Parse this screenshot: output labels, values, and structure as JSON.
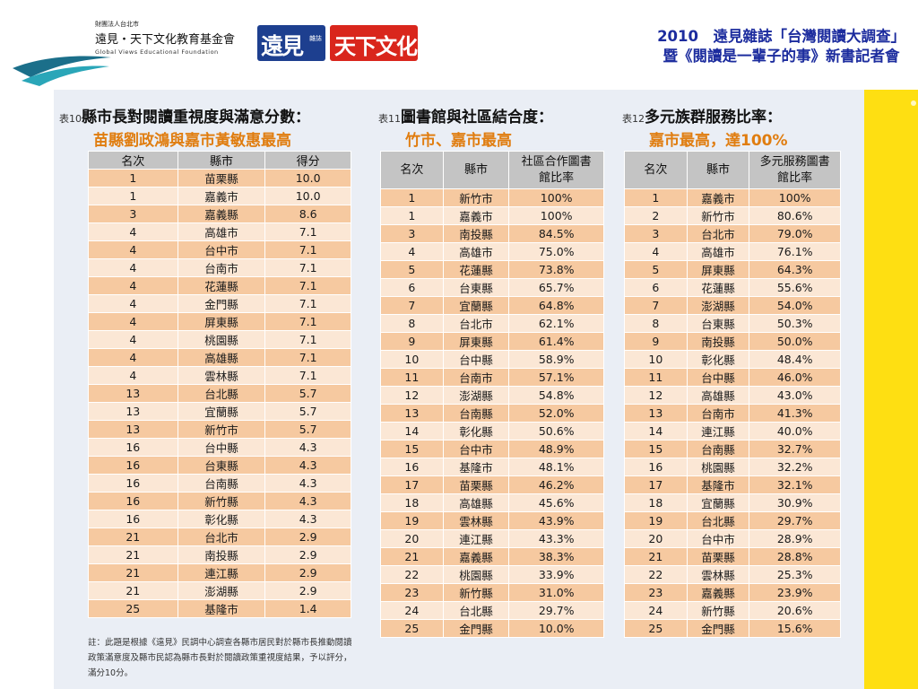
{
  "header": {
    "foundation_prefix": "財團法人台北市",
    "foundation_name": "遠見・天下文化教育基金會",
    "foundation_en": "Global Views Educational Foundation",
    "brand_gv": "遠見",
    "brand_gv_tag": "雜誌",
    "brand_cw": "天下文化",
    "title_line1": "2010　遠見雜誌「台灣閱讀大調查」",
    "title_line2": "暨《閱讀是一輩子的事》新書記者會"
  },
  "table10": {
    "num": "表10",
    "title": "縣市長對閱讀重視度與滿意分數：",
    "subtitle": "苗縣劉政鴻與嘉市黃敏惠最高",
    "headers": [
      "名次",
      "縣市",
      "得分"
    ],
    "rows": [
      [
        "1",
        "苗栗縣",
        "10.0"
      ],
      [
        "1",
        "嘉義市",
        "10.0"
      ],
      [
        "3",
        "嘉義縣",
        "8.6"
      ],
      [
        "4",
        "高雄市",
        "7.1"
      ],
      [
        "4",
        "台中市",
        "7.1"
      ],
      [
        "4",
        "台南市",
        "7.1"
      ],
      [
        "4",
        "花蓮縣",
        "7.1"
      ],
      [
        "4",
        "金門縣",
        "7.1"
      ],
      [
        "4",
        "屏東縣",
        "7.1"
      ],
      [
        "4",
        "桃園縣",
        "7.1"
      ],
      [
        "4",
        "高雄縣",
        "7.1"
      ],
      [
        "4",
        "雲林縣",
        "7.1"
      ],
      [
        "13",
        "台北縣",
        "5.7"
      ],
      [
        "13",
        "宜蘭縣",
        "5.7"
      ],
      [
        "13",
        "新竹市",
        "5.7"
      ],
      [
        "16",
        "台中縣",
        "4.3"
      ],
      [
        "16",
        "台東縣",
        "4.3"
      ],
      [
        "16",
        "台南縣",
        "4.3"
      ],
      [
        "16",
        "新竹縣",
        "4.3"
      ],
      [
        "16",
        "彰化縣",
        "4.3"
      ],
      [
        "21",
        "台北市",
        "2.9"
      ],
      [
        "21",
        "南投縣",
        "2.9"
      ],
      [
        "21",
        "連江縣",
        "2.9"
      ],
      [
        "21",
        "澎湖縣",
        "2.9"
      ],
      [
        "25",
        "基隆市",
        "1.4"
      ]
    ],
    "note": "註：此題是根據《遠見》民調中心調查各縣市居民對於縣市長推動閱讀政策滿意度及縣市民認為縣市長對於閱讀政策重視度結果，予以評分，滿分10分。"
  },
  "table11": {
    "num": "表11",
    "title": "圖書館與社區結合度：",
    "subtitle": "竹市、嘉市最高",
    "headers": [
      "名次",
      "縣市",
      "社區合作圖書館比率"
    ],
    "rows": [
      [
        "1",
        "新竹市",
        "100%"
      ],
      [
        "1",
        "嘉義市",
        "100%"
      ],
      [
        "3",
        "南投縣",
        "84.5%"
      ],
      [
        "4",
        "高雄市",
        "75.0%"
      ],
      [
        "5",
        "花蓮縣",
        "73.8%"
      ],
      [
        "6",
        "台東縣",
        "65.7%"
      ],
      [
        "7",
        "宜蘭縣",
        "64.8%"
      ],
      [
        "8",
        "台北市",
        "62.1%"
      ],
      [
        "9",
        "屏東縣",
        "61.4%"
      ],
      [
        "10",
        "台中縣",
        "58.9%"
      ],
      [
        "11",
        "台南市",
        "57.1%"
      ],
      [
        "12",
        "澎湖縣",
        "54.8%"
      ],
      [
        "13",
        "台南縣",
        "52.0%"
      ],
      [
        "14",
        "彰化縣",
        "50.6%"
      ],
      [
        "15",
        "台中市",
        "48.9%"
      ],
      [
        "16",
        "基隆市",
        "48.1%"
      ],
      [
        "17",
        "苗栗縣",
        "46.2%"
      ],
      [
        "18",
        "高雄縣",
        "45.6%"
      ],
      [
        "19",
        "雲林縣",
        "43.9%"
      ],
      [
        "20",
        "連江縣",
        "43.3%"
      ],
      [
        "21",
        "嘉義縣",
        "38.3%"
      ],
      [
        "22",
        "桃園縣",
        "33.9%"
      ],
      [
        "23",
        "新竹縣",
        "31.0%"
      ],
      [
        "24",
        "台北縣",
        "29.7%"
      ],
      [
        "25",
        "金門縣",
        "10.0%"
      ]
    ]
  },
  "table12": {
    "num": "表12",
    "title": "多元族群服務比率：",
    "subtitle": "嘉市最高，達100%",
    "headers": [
      "名次",
      "縣市",
      "多元服務圖書館比率"
    ],
    "rows": [
      [
        "1",
        "嘉義市",
        "100%"
      ],
      [
        "2",
        "新竹市",
        "80.6%"
      ],
      [
        "3",
        "台北市",
        "79.0%"
      ],
      [
        "4",
        "高雄市",
        "76.1%"
      ],
      [
        "5",
        "屏東縣",
        "64.3%"
      ],
      [
        "6",
        "花蓮縣",
        "55.6%"
      ],
      [
        "7",
        "澎湖縣",
        "54.0%"
      ],
      [
        "8",
        "台東縣",
        "50.3%"
      ],
      [
        "9",
        "南投縣",
        "50.0%"
      ],
      [
        "10",
        "彰化縣",
        "48.4%"
      ],
      [
        "11",
        "台中縣",
        "46.0%"
      ],
      [
        "12",
        "高雄縣",
        "43.0%"
      ],
      [
        "13",
        "台南市",
        "41.3%"
      ],
      [
        "14",
        "連江縣",
        "40.0%"
      ],
      [
        "15",
        "台南縣",
        "32.7%"
      ],
      [
        "16",
        "桃園縣",
        "32.2%"
      ],
      [
        "17",
        "基隆市",
        "32.1%"
      ],
      [
        "18",
        "宜蘭縣",
        "30.9%"
      ],
      [
        "19",
        "台北縣",
        "29.7%"
      ],
      [
        "20",
        "台中市",
        "28.9%"
      ],
      [
        "21",
        "苗栗縣",
        "28.8%"
      ],
      [
        "22",
        "雲林縣",
        "25.3%"
      ],
      [
        "23",
        "嘉義縣",
        "23.9%"
      ],
      [
        "24",
        "新竹縣",
        "20.6%"
      ],
      [
        "25",
        "金門縣",
        "15.6%"
      ]
    ]
  },
  "colors": {
    "title_blue": "#1c2c9e",
    "subtitle_orange": "#e07d10",
    "row_dark": "#f6c9a0",
    "row_light": "#fbe7d5",
    "side_bar": "#fedf12"
  }
}
